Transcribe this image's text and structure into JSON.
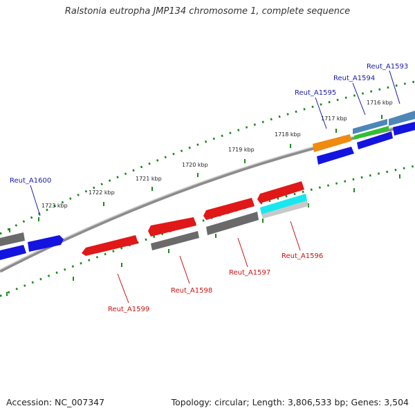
{
  "title": "Ralstonia eutropha JMP134 chromosome 1, complete sequence",
  "footer": {
    "accession": "Accession: NC_007347",
    "topology": "Topology: circular; Length: 3,806,533 bp; Genes: 3,504"
  },
  "colors": {
    "backbone": "#8c8c8c",
    "tick": "#1a8a1a",
    "forward_label": "#1a1aa8",
    "reverse_label": "#cc1010",
    "gene_red": "#e01818",
    "gene_blue": "#1414e0",
    "gene_gray": "#6a6a6a",
    "gene_orange": "#f08a10",
    "gene_cyan": "#18e8ee",
    "gene_green": "#30c030",
    "gene_steel": "#4f86b8",
    "gene_lightgray": "#c8c8c8"
  },
  "kbp_ticks": [
    "1716 kbp",
    "1717 kbp",
    "1718 kbp",
    "1719 kbp",
    "1720 kbp",
    "1721 kbp",
    "1722 kbp",
    "1723 kbp"
  ],
  "gene_labels_forward": [
    "Reut_A1593",
    "Reut_A1594",
    "Reut_A1595",
    "Reut_A1600"
  ],
  "gene_labels_reverse": [
    "Reut_A1596",
    "Reut_A1597",
    "Reut_A1598",
    "Reut_A1599"
  ]
}
